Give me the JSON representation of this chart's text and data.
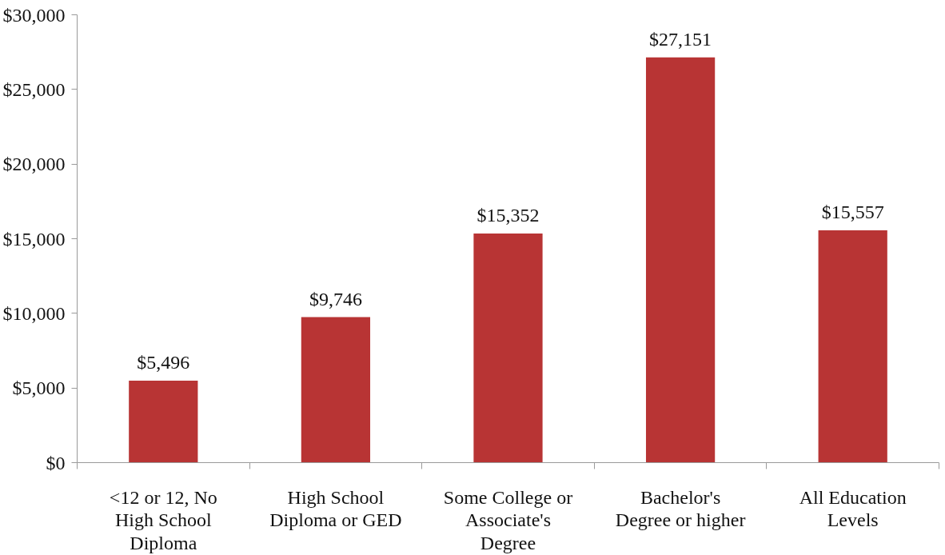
{
  "chart_data": {
    "type": "bar",
    "categories": [
      "<12 or 12, No High School Diploma",
      "High School Diploma or GED",
      "Some College or Associate's Degree",
      "Bachelor's Degree or higher",
      "All Education Levels"
    ],
    "values": [
      5496,
      9746,
      15352,
      27151,
      15557
    ],
    "value_labels": [
      "$5,496",
      "$9,746",
      "$15,352",
      "$27,151",
      "$15,557"
    ],
    "color": "#b83434",
    "ylim": [
      0,
      30000
    ],
    "yticks": [
      {
        "value": 0,
        "label": "$0"
      },
      {
        "value": 5000,
        "label": "$5,000"
      },
      {
        "value": 10000,
        "label": "$10,000"
      },
      {
        "value": 15000,
        "label": "$15,000"
      },
      {
        "value": 20000,
        "label": "$20,000"
      },
      {
        "value": 25000,
        "label": "$25,000"
      },
      {
        "value": 30000,
        "label": "$30,000"
      }
    ]
  }
}
